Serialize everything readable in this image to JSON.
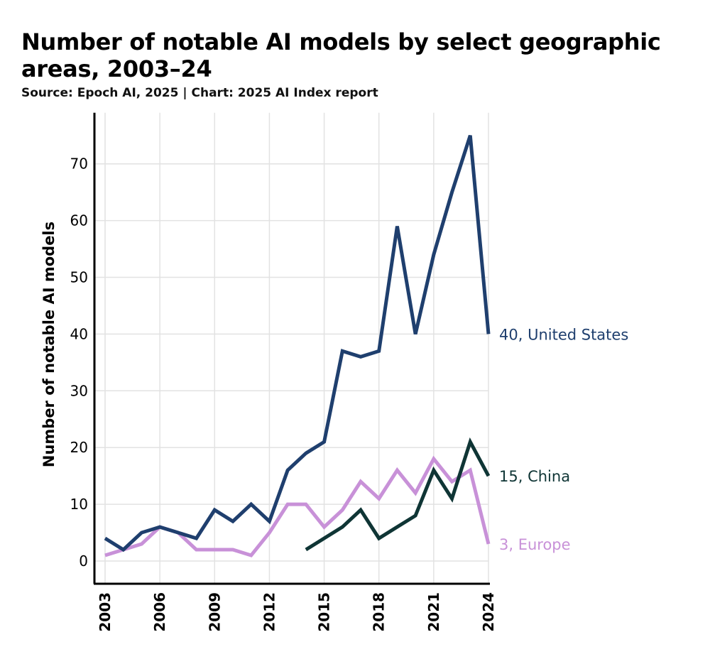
{
  "chart_data": {
    "type": "line",
    "title": "Number of notable AI models by select geographic areas, 2003–24",
    "subtitle": "Source: Epoch AI, 2025 | Chart: 2025 AI Index report",
    "xlabel": "",
    "ylabel": "Number of notable AI models",
    "x": [
      2003,
      2004,
      2005,
      2006,
      2007,
      2008,
      2009,
      2010,
      2011,
      2012,
      2013,
      2014,
      2015,
      2016,
      2017,
      2018,
      2019,
      2020,
      2021,
      2022,
      2023,
      2024
    ],
    "xticks": [
      "2003",
      "2006",
      "2009",
      "2012",
      "2015",
      "2018",
      "2021",
      "2024"
    ],
    "yticks": [
      "0",
      "10",
      "20",
      "30",
      "40",
      "50",
      "60",
      "70"
    ],
    "ylim": [
      -4,
      79
    ],
    "xlim": [
      2003,
      2024
    ],
    "grid": true,
    "series": [
      {
        "name": "United States",
        "end_label": "40, United States",
        "color": "#1f3f6e",
        "values": [
          4,
          2,
          5,
          6,
          5,
          4,
          9,
          7,
          10,
          7,
          16,
          19,
          21,
          37,
          36,
          37,
          59,
          40,
          54,
          65,
          75,
          40
        ]
      },
      {
        "name": "China",
        "end_label": "15, China",
        "color": "#0f3535",
        "values": [
          null,
          null,
          null,
          null,
          null,
          null,
          null,
          null,
          null,
          null,
          null,
          2,
          4,
          6,
          9,
          4,
          6,
          8,
          16,
          11,
          21,
          15
        ]
      },
      {
        "name": "Europe",
        "end_label": "3, Europe",
        "color": "#c891d8",
        "values": [
          1,
          2,
          3,
          6,
          5,
          2,
          2,
          2,
          1,
          5,
          10,
          10,
          6,
          9,
          14,
          11,
          16,
          12,
          18,
          14,
          16,
          3
        ]
      }
    ]
  }
}
